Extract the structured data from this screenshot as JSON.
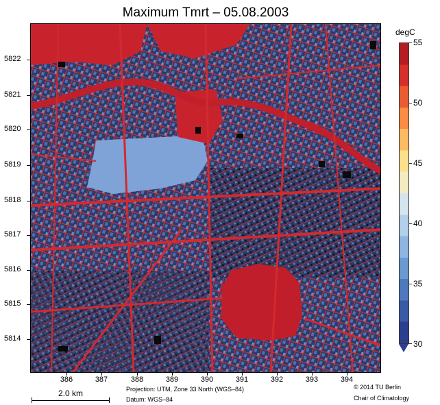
{
  "title": "Maximum Tmrt – 05.08.2003",
  "colorbar": {
    "unit": "degC",
    "labels": [
      "55",
      "50",
      "45",
      "40",
      "35",
      "30"
    ],
    "range": [
      30,
      55
    ],
    "colors": [
      "#2c3f8f",
      "#3a5aa8",
      "#4f78bd",
      "#6d99d1",
      "#8fb6e0",
      "#b2d0ea",
      "#d5e5f0",
      "#f3ecc2",
      "#fde08b",
      "#fdbb63",
      "#f98d45",
      "#ea5d34",
      "#d6302a",
      "#b51d24"
    ]
  },
  "map": {
    "y_labels": [
      "5822",
      "5821",
      "5820",
      "5819",
      "5818",
      "5817",
      "5816",
      "5815",
      "5814"
    ],
    "x_labels": [
      "386",
      "387",
      "388",
      "389",
      "390",
      "391",
      "392",
      "393",
      "394"
    ],
    "base_color": "#23335e",
    "street_color": "#d12a2d",
    "courtyard_color": "#7fa3d6",
    "building_color": "#0a0a0a"
  },
  "projection": "Projection: UTM, Zone 33 North (WGS–84)",
  "datum": "Datum: WGS–84",
  "copyright": "© 2014 TU Berlin",
  "institution": "Chair of Climatology",
  "scale_bar": {
    "label": "2.0 km"
  }
}
